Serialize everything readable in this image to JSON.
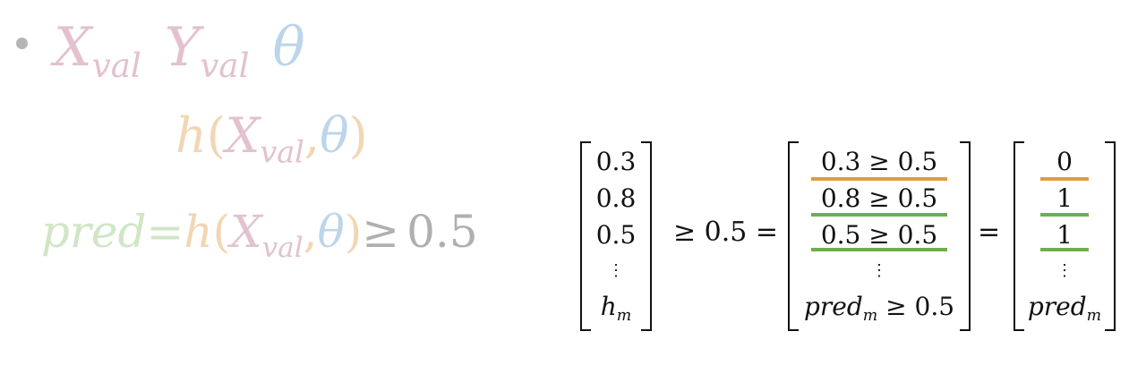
{
  "left": {
    "line1": {
      "x": "X",
      "x_sub": "val",
      "y": "Y",
      "y_sub": "val",
      "theta": "θ"
    },
    "line2": {
      "h": "h",
      "open": "(",
      "x": "X",
      "x_sub": "val",
      "comma": ",",
      "theta": "θ",
      "close": ")"
    },
    "line3": {
      "pred": "pred",
      "eq": "=",
      "h": "h",
      "open": "(",
      "x": "X",
      "x_sub": "val",
      "comma": ",",
      "theta": "θ",
      "close": ")",
      "geq": "≥",
      "thr": "0.5"
    }
  },
  "equation": {
    "vector1": [
      "0.3",
      "0.8",
      "0.5",
      "⋮",
      "h",
      "m"
    ],
    "op1": "≥ 0.5 =",
    "vector2": [
      "0.3 ≥ 0.5",
      "0.8 ≥ 0.5",
      "0.5 ≥ 0.5",
      "⋮",
      "pred",
      "m",
      "≥ 0.5"
    ],
    "op2": "=",
    "vector3": [
      "0",
      "1",
      "1",
      "⋮",
      "pred",
      "m"
    ]
  },
  "colors": {
    "pink": "#e3c1cf",
    "blue": "#bcd5ea",
    "orange": "#f2d6b4",
    "green": "#d0e6c5",
    "gray": "#b0b0b0",
    "underline_false": "#e39a3f",
    "underline_true": "#6fae4e"
  }
}
